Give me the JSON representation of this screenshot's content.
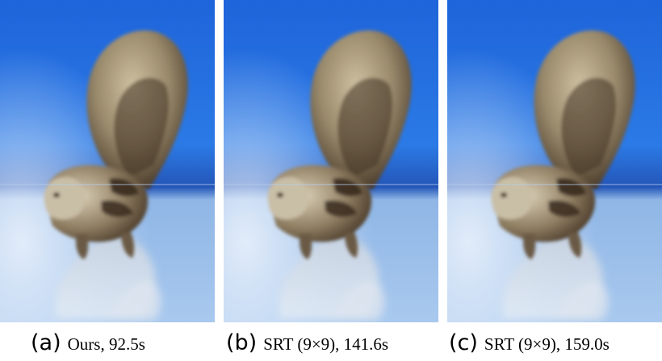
{
  "figure": {
    "panels": [
      {
        "tag": "(a)",
        "text": "Ours, 92.5s"
      },
      {
        "tag": "(b)",
        "text": "SRT (9×9), 141.6s"
      },
      {
        "tag": "(c)",
        "text": "SRT (9×9), 159.0s"
      }
    ]
  },
  "colors": {
    "background_top": "#1d62d8",
    "background_bottom": "#9fc3ec",
    "fur_light": "#b8ab8e",
    "fur_dark": "#5a4733",
    "stripe": "#3a2a1e",
    "reflection": "#d4dde8"
  }
}
